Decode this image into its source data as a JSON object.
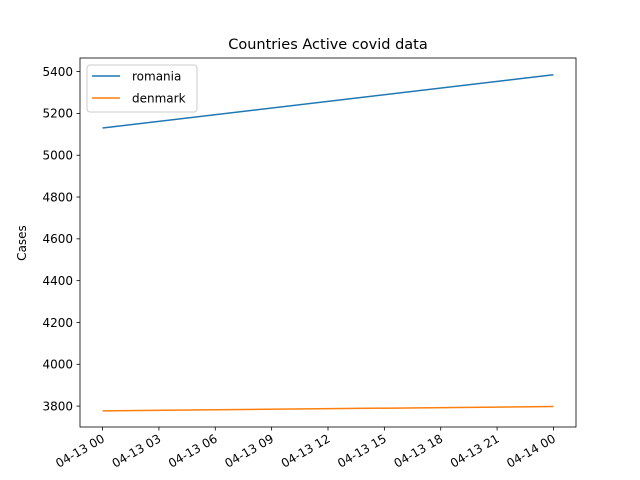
{
  "chart_data": {
    "type": "line",
    "title": "Countries Active covid data",
    "xlabel": "",
    "ylabel": "Cases",
    "x_tick_labels": [
      "04-13 00",
      "04-13 03",
      "04-13 06",
      "04-13 09",
      "04-13 12",
      "04-13 15",
      "04-13 18",
      "04-13 21",
      "04-14 00"
    ],
    "x_ticks_hours": [
      0,
      3,
      6,
      9,
      12,
      15,
      18,
      21,
      24
    ],
    "x": [
      0,
      24
    ],
    "xlim": [
      -1.2,
      25.2
    ],
    "y_ticks": [
      3800,
      4000,
      4200,
      4400,
      4600,
      4800,
      5000,
      5200,
      5400
    ],
    "ylim": [
      3700,
      5465
    ],
    "grid": false,
    "legend_position": "top-left",
    "series": [
      {
        "name": "romania",
        "color": "#1f77b4",
        "values": [
          5130,
          5385
        ]
      },
      {
        "name": "denmark",
        "color": "#ff7f0e",
        "values": [
          3777,
          3798
        ]
      }
    ]
  }
}
